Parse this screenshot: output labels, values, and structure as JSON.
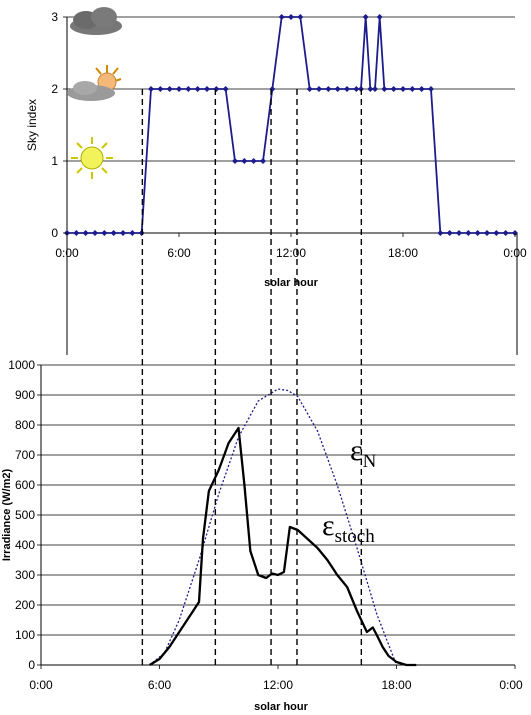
{
  "chart_data": [
    {
      "type": "line",
      "xlabel": "solar hour",
      "ylabel": "Sky index",
      "xlim": [
        0,
        24
      ],
      "ylim": [
        0,
        3
      ],
      "x_ticks": [
        "0:00",
        "6:00",
        "12:00",
        "18:00",
        "0:00"
      ],
      "y_ticks": [
        "0",
        "1",
        "2",
        "3"
      ],
      "grid": "horizontal",
      "icons": [
        "overcast-cloud-icon",
        "partly-cloudy-sun-icon",
        "clear-sun-icon"
      ],
      "series": [
        {
          "color": "#1c1c8c",
          "x": [
            0,
            0.5,
            1,
            1.5,
            2,
            2.5,
            3,
            3.5,
            4,
            4.5,
            5,
            5.5,
            6,
            6.5,
            7,
            7.5,
            8,
            8.5,
            9,
            9.5,
            10,
            10.5,
            11,
            11.5,
            12,
            12.5,
            13,
            13.5,
            14,
            14.5,
            15,
            15.5,
            15.75,
            16,
            16.25,
            16.5,
            16.75,
            17,
            17.5,
            18,
            18.5,
            19,
            19.5,
            20,
            20.5,
            21,
            21.5,
            22,
            22.5,
            23,
            23.5,
            24
          ],
          "values": [
            0,
            0,
            0,
            0,
            0,
            0,
            0,
            0,
            0,
            2,
            2,
            2,
            2,
            2,
            2,
            2,
            2,
            2,
            1,
            1,
            1,
            1,
            2,
            3,
            3,
            3,
            2,
            2,
            2,
            2,
            2,
            2,
            2,
            3,
            2,
            2,
            3,
            2,
            2,
            2,
            2,
            2,
            2,
            0,
            0,
            0,
            0,
            0,
            0,
            0,
            0,
            0
          ]
        }
      ]
    },
    {
      "type": "line",
      "xlabel": "solar hour",
      "ylabel": "Irradiance (W/m2)",
      "xlim": [
        0,
        24
      ],
      "ylim": [
        0,
        1000
      ],
      "x_ticks": [
        "0:00",
        "6:00",
        "12:00",
        "18:00",
        "0:00"
      ],
      "y_ticks": [
        "0",
        "100",
        "200",
        "300",
        "400",
        "500",
        "600",
        "700",
        "800",
        "900",
        "1000"
      ],
      "grid": "horizontal",
      "annotations": [
        {
          "symbol": "ε",
          "subscript": "N"
        },
        {
          "symbol": "ε",
          "subscript": "stoch"
        }
      ],
      "series": [
        {
          "name": "εN",
          "color": "#1c1c8c",
          "style": "dotted",
          "x": [
            5.5,
            6.25,
            7,
            8,
            9,
            10,
            11,
            12,
            12.5,
            13,
            14,
            15,
            16,
            17,
            18
          ],
          "values": [
            0,
            40,
            150,
            350,
            570,
            760,
            880,
            920,
            915,
            895,
            780,
            600,
            390,
            170,
            0
          ]
        },
        {
          "name": "εstoch",
          "color": "#000000",
          "style": "solid",
          "x": [
            5.5,
            6,
            6.5,
            7,
            7.5,
            8,
            8.2,
            8.5,
            9,
            9.5,
            10,
            10.3,
            10.6,
            11,
            11.4,
            11.7,
            12,
            12.3,
            12.6,
            13,
            13.5,
            14,
            14.5,
            15,
            15.5,
            16,
            16.5,
            16.8,
            17,
            17.3,
            17.6,
            18,
            18.5,
            19
          ],
          "values": [
            0,
            20,
            60,
            110,
            160,
            210,
            420,
            580,
            650,
            740,
            790,
            600,
            380,
            300,
            290,
            305,
            300,
            310,
            460,
            450,
            420,
            390,
            350,
            300,
            260,
            180,
            110,
            125,
            100,
            60,
            30,
            10,
            0,
            0
          ]
        }
      ]
    }
  ],
  "vertical_markers": [
    4.6,
    8.4,
    11.3,
    12.65,
    16
  ]
}
